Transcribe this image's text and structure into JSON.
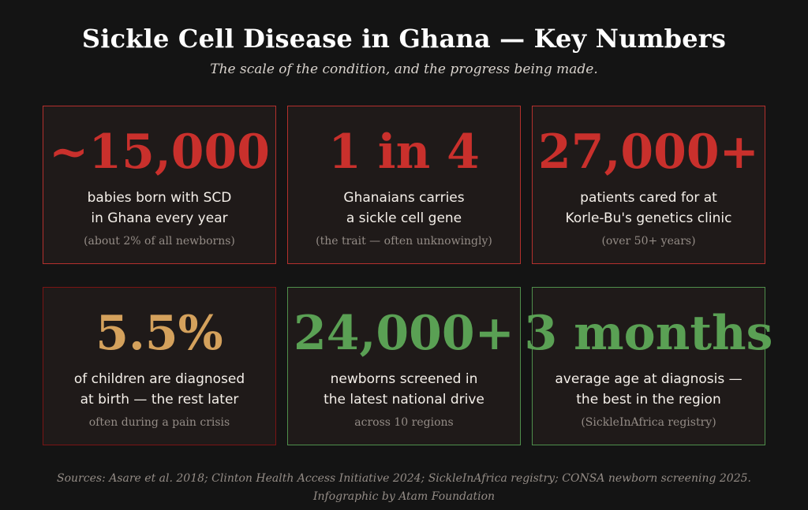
{
  "header": {
    "title": "Sickle Cell Disease in Ghana — Key Numbers",
    "subtitle": "The scale of the condition, and the progress being made."
  },
  "cards": [
    {
      "value": "~15,000",
      "desc_line1": "babies born with SCD",
      "desc_line2": "in Ghana every year",
      "note": "(about 2% of all newborns)",
      "color": "#c9302c"
    },
    {
      "value": "1 in 4",
      "desc_line1": "Ghanaians carries",
      "desc_line2": "a sickle cell gene",
      "note": "(the trait — often unknowingly)",
      "color": "#c9302c"
    },
    {
      "value": "27,000+",
      "desc_line1": "patients cared for at",
      "desc_line2": "Korle-Bu's genetics clinic",
      "note": "(over 50+ years)",
      "color": "#c9302c"
    },
    {
      "value": "5.5%",
      "desc_line1": "of children are diagnosed",
      "desc_line2": "at birth — the rest later",
      "note": "often during a pain crisis",
      "color": "#d4a15c"
    },
    {
      "value": "24,000+",
      "desc_line1": "newborns screened in",
      "desc_line2": "the latest national drive",
      "note": "across 10 regions",
      "color": "#5aa054"
    },
    {
      "value": "3 months",
      "desc_line1": "average age at diagnosis —",
      "desc_line2": "the best in the region",
      "note": "(SickleInAfrica registry)",
      "color": "#5aa054"
    }
  ],
  "footer": {
    "sources": "Sources: Asare et al. 2018; Clinton Health Access Initiative 2024; SickleInAfrica registry; CONSA newborn screening 2025.",
    "credit": "Infographic by Atam Foundation"
  }
}
